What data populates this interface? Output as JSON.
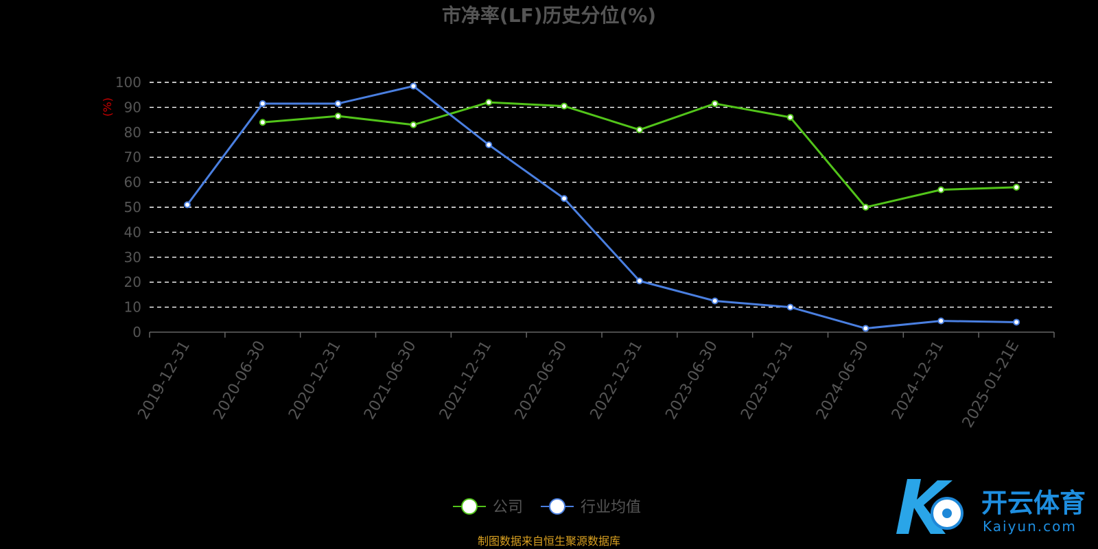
{
  "chart_data": {
    "type": "line",
    "title": "市净率(LF)历史分位(%)",
    "ylabel": "(%)",
    "xlabel": "",
    "ylim": [
      0,
      100
    ],
    "yticks": [
      0,
      10,
      20,
      30,
      40,
      50,
      60,
      70,
      80,
      90,
      100
    ],
    "categories": [
      "2019-12-31",
      "2020-06-30",
      "2020-12-31",
      "2021-06-30",
      "2021-12-31",
      "2022-06-30",
      "2022-12-31",
      "2023-06-30",
      "2023-12-31",
      "2024-06-30",
      "2024-12-31",
      "2025-01-21E"
    ],
    "grid": true,
    "legend_position": "bottom-center",
    "series": [
      {
        "name": "公司",
        "color": "#52c41a",
        "values": [
          null,
          84,
          86.5,
          83,
          92,
          90.5,
          81,
          91.5,
          86,
          50,
          57,
          58
        ]
      },
      {
        "name": "行业均值",
        "color": "#4a7fe0",
        "values": [
          51,
          91.5,
          91.5,
          98.5,
          75,
          53.5,
          20.5,
          12.5,
          10,
          1.5,
          4.5,
          4
        ]
      }
    ]
  },
  "source_note": "制图数据来自恒生聚源数据库",
  "watermark": {
    "brand_cn": "开云体育",
    "brand_en": "Kaiyun.com"
  },
  "colors": {
    "background": "#000000",
    "grid": "#ffffff",
    "axis": "#666666"
  }
}
